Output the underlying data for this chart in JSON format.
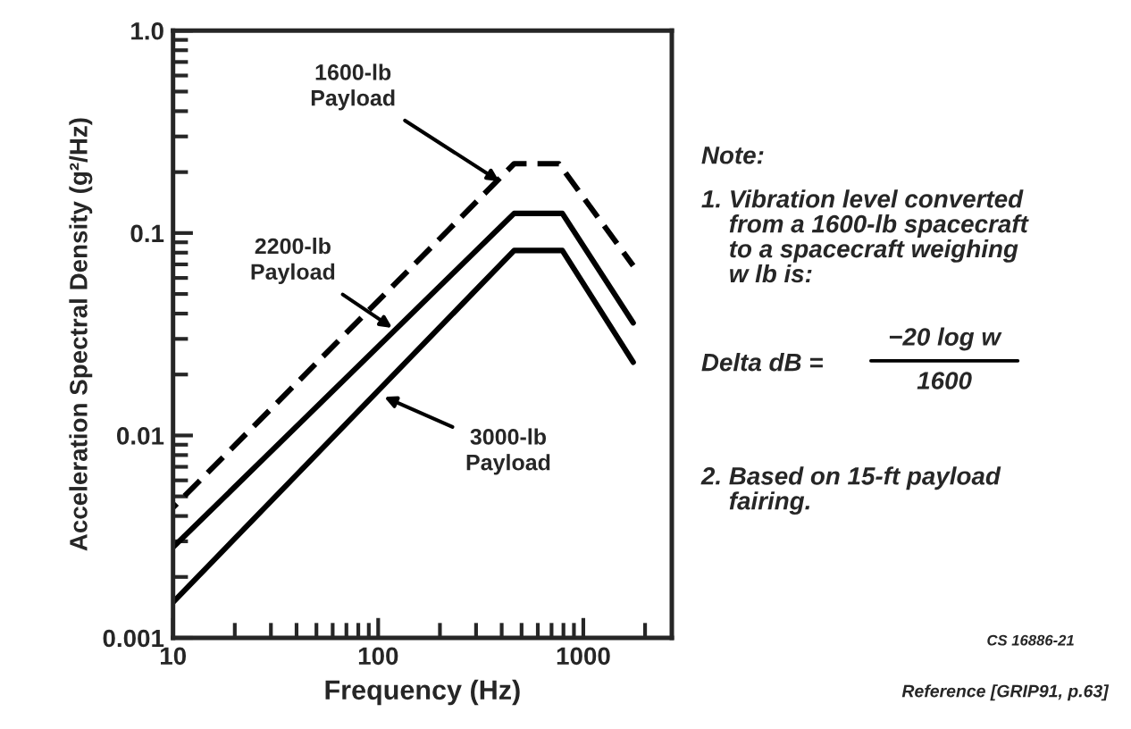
{
  "chart_data": {
    "type": "line",
    "xlabel": "Frequency (Hz)",
    "ylabel": "Acceleration Spectral Density (g²/Hz)",
    "log": "xy",
    "xlim": [
      10,
      2700
    ],
    "xticks": [
      10,
      100,
      1000
    ],
    "ylim": [
      0.001,
      1.0
    ],
    "yticks": [
      {
        "value": 0.001,
        "label": "0.001"
      },
      {
        "value": 0.01,
        "label": "0.01"
      },
      {
        "value": 0.1,
        "label": "0.1"
      },
      {
        "value": 1.0,
        "label": "1.0"
      }
    ],
    "grid": false,
    "legend": false,
    "marker": "none",
    "series": [
      {
        "color": "#000000",
        "line_style": "dashed",
        "x": [
          10,
          460,
          760,
          1750
        ],
        "values": [
          0.0044,
          0.22,
          0.22,
          0.069
        ]
      },
      {
        "color": "#000000",
        "line_style": "solid",
        "x": [
          10,
          460,
          790,
          1750
        ],
        "values": [
          0.0028,
          0.125,
          0.125,
          0.036
        ]
      },
      {
        "color": "#000000",
        "line_style": "solid",
        "x": [
          10,
          460,
          790,
          1750
        ],
        "values": [
          0.0015,
          0.082,
          0.082,
          0.023
        ]
      }
    ],
    "annotations": [
      {
        "text": "1600-lb\nPayload",
        "x": 390,
        "y": 0.18
      },
      {
        "text": "2200-lb\nPayload",
        "x": 117,
        "y": 0.034
      },
      {
        "text": "3000-lb\nPayload",
        "x": 107,
        "y": 0.0155
      },
      "Note:",
      "1. Vibration level converted\n    from a 1600-lb spacecraft\n    to a spacecraft weighing\n    w lb is:",
      "Delta dB =",
      "−20 log w",
      "1600",
      "2. Based on 15-ft payload\n    fairing.",
      "CS 16886-21",
      "Reference [GRIP91, p.63]"
    ]
  }
}
